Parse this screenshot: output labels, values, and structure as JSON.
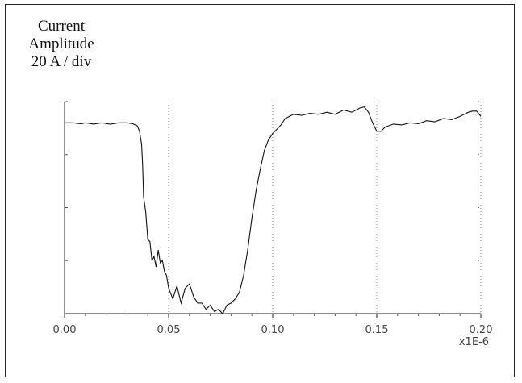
{
  "chart_data": {
    "type": "line",
    "title": "",
    "ylabel_lines": [
      "Current",
      "Amplitude",
      "20 A / div"
    ],
    "xlabel": "",
    "x_multiplier": "x1E-6",
    "x_ticks": [
      "0.00",
      "0.05",
      "0.10",
      "0.15",
      "0.20"
    ],
    "xlim": [
      0.0,
      0.2
    ],
    "ylim": [
      0,
      100
    ],
    "grid": "dotted",
    "series": [
      {
        "x": [
          0.0,
          0.004,
          0.008,
          0.01,
          0.014,
          0.018,
          0.022,
          0.026,
          0.03,
          0.033,
          0.035,
          0.036,
          0.037,
          0.0375,
          0.038,
          0.039,
          0.04,
          0.041,
          0.042,
          0.043,
          0.044,
          0.045,
          0.046,
          0.047,
          0.048,
          0.049,
          0.05,
          0.052,
          0.054,
          0.056,
          0.058,
          0.06,
          0.062,
          0.064,
          0.066,
          0.068,
          0.07,
          0.072,
          0.074,
          0.076,
          0.078,
          0.08,
          0.082,
          0.084,
          0.086,
          0.088,
          0.09,
          0.092,
          0.094,
          0.096,
          0.098,
          0.1,
          0.102,
          0.104,
          0.106,
          0.108,
          0.11,
          0.114,
          0.118,
          0.122,
          0.126,
          0.13,
          0.134,
          0.138,
          0.142,
          0.144,
          0.146,
          0.148,
          0.15,
          0.152,
          0.154,
          0.158,
          0.162,
          0.166,
          0.17,
          0.174,
          0.178,
          0.182,
          0.186,
          0.19,
          0.194,
          0.196,
          0.198,
          0.2
        ],
        "y": [
          90,
          90,
          89.5,
          90,
          89.4,
          90,
          89.3,
          90,
          90,
          89.5,
          88.5,
          86,
          80,
          70,
          55,
          48,
          35,
          34,
          25,
          27,
          22,
          30,
          24,
          25,
          20,
          18,
          12,
          7,
          13,
          5,
          12,
          14,
          8,
          5,
          5,
          2,
          4,
          1,
          2,
          0,
          4,
          5,
          7,
          10,
          18,
          30,
          45,
          58,
          68,
          77,
          82,
          85,
          87,
          89,
          92,
          93,
          94,
          93.5,
          94.5,
          94,
          95,
          94,
          96,
          95,
          97,
          97.5,
          95,
          90,
          86,
          86,
          88,
          89.4,
          89,
          90,
          89.6,
          91,
          90.5,
          92,
          91.5,
          93,
          95,
          95.5,
          95.5,
          93
        ]
      }
    ]
  }
}
